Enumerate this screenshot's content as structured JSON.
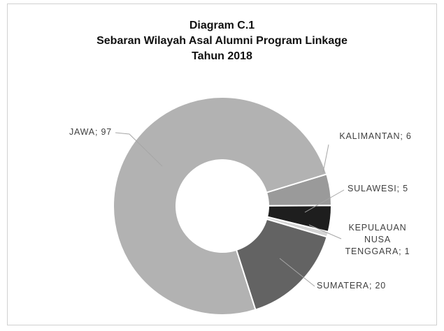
{
  "chart_data": {
    "type": "donut",
    "title": [
      "Diagram C.1",
      "Sebaran Wilayah Asal Alumni Program Linkage",
      "Tahun 2018"
    ],
    "categories": [
      "KALIMANTAN",
      "SULAWESI",
      "KEPULAUAN NUSA TENGGARA",
      "SUMATERA",
      "JAWA"
    ],
    "values": [
      6,
      5,
      1,
      20,
      97
    ],
    "colors": [
      "#9a9a9a",
      "#1e1e1e",
      "#d4d4d4",
      "#636363",
      "#b2b2b2"
    ],
    "label_separator": "; "
  }
}
